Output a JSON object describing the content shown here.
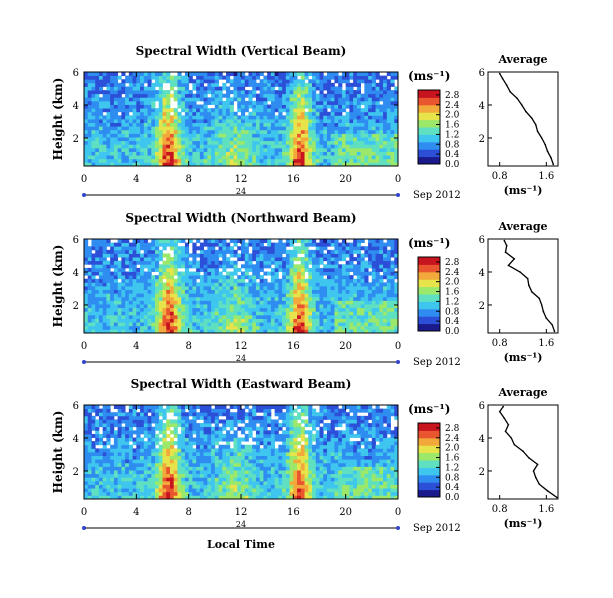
{
  "figure": {
    "xlabel": "Local Time",
    "date_label": "Sep 2012",
    "day_label": "24",
    "colorbar_unit": "(ms⁻¹)",
    "profile_title": "Average",
    "profile_unit": "(ms⁻¹)",
    "colormap": [
      "#1a1a8c",
      "#2c4fd8",
      "#2f8cf0",
      "#3fc6ee",
      "#5fe0c0",
      "#9be86a",
      "#e6e44a",
      "#f2a83a",
      "#e8552e",
      "#c8141e"
    ]
  },
  "chart_data": [
    {
      "type": "heatmap",
      "title": "Spectral Width (Vertical Beam)",
      "ylabel": "Height (km)",
      "x_ticks": [
        "0",
        "4",
        "8",
        "12",
        "16",
        "20",
        "0"
      ],
      "y_ticks": [
        "6",
        "4",
        "2"
      ],
      "xlim": [
        0,
        24
      ],
      "ylim": [
        0.3,
        6
      ],
      "colorbar_ticks": [
        "0.0",
        "0.4",
        "0.8",
        "1.2",
        "1.6",
        "2.0",
        "2.4",
        "2.8"
      ],
      "colorbar_range": [
        0,
        3.0
      ],
      "profile": {
        "title": "Average",
        "x_ticks": [
          "0.8",
          "1.6"
        ],
        "y_ticks": [
          "6",
          "4",
          "2"
        ],
        "xlim": [
          0.6,
          1.8
        ],
        "ylim": [
          0.3,
          6
        ],
        "height": [
          0.4,
          0.8,
          1.2,
          1.6,
          2.0,
          2.4,
          2.8,
          3.2,
          3.6,
          4.0,
          4.4,
          4.8,
          5.2,
          5.6,
          5.9
        ],
        "width": [
          1.72,
          1.68,
          1.62,
          1.58,
          1.52,
          1.45,
          1.42,
          1.35,
          1.25,
          1.18,
          1.1,
          0.98,
          0.92,
          0.85,
          0.8
        ]
      }
    },
    {
      "type": "heatmap",
      "title": "Spectral Width (Northward Beam)",
      "ylabel": "Height (km)",
      "x_ticks": [
        "0",
        "4",
        "8",
        "12",
        "16",
        "20",
        "0"
      ],
      "y_ticks": [
        "6",
        "4",
        "2"
      ],
      "xlim": [
        0,
        24
      ],
      "ylim": [
        0.3,
        6
      ],
      "colorbar_ticks": [
        "0.0",
        "0.4",
        "0.8",
        "1.2",
        "1.6",
        "2.0",
        "2.4",
        "2.8"
      ],
      "colorbar_range": [
        0,
        3.0
      ],
      "profile": {
        "title": "Average",
        "x_ticks": [
          "0.8",
          "1.6"
        ],
        "y_ticks": [
          "6",
          "4",
          "2"
        ],
        "xlim": [
          0.6,
          1.8
        ],
        "ylim": [
          0.3,
          6
        ],
        "height": [
          0.4,
          0.8,
          1.2,
          1.6,
          2.0,
          2.4,
          2.8,
          3.2,
          3.6,
          4.0,
          4.4,
          4.8,
          5.2,
          5.6,
          5.9
        ],
        "width": [
          1.74,
          1.7,
          1.6,
          1.55,
          1.52,
          1.48,
          1.35,
          1.3,
          1.28,
          1.15,
          0.95,
          1.05,
          0.9,
          0.92,
          0.88
        ]
      }
    },
    {
      "type": "heatmap",
      "title": "Spectral Width (Eastward Beam)",
      "ylabel": "Height (km)",
      "x_ticks": [
        "0",
        "4",
        "8",
        "12",
        "16",
        "20",
        "0"
      ],
      "y_ticks": [
        "6",
        "4",
        "2"
      ],
      "xlim": [
        0,
        24
      ],
      "ylim": [
        0.3,
        6
      ],
      "colorbar_ticks": [
        "0.0",
        "0.4",
        "0.8",
        "1.2",
        "1.6",
        "2.0",
        "2.4",
        "2.8"
      ],
      "colorbar_range": [
        0,
        3.0
      ],
      "profile": {
        "title": "Average",
        "x_ticks": [
          "0.8",
          "1.6"
        ],
        "y_ticks": [
          "6",
          "4",
          "2"
        ],
        "xlim": [
          0.6,
          1.8
        ],
        "ylim": [
          0.3,
          6
        ],
        "height": [
          0.4,
          0.8,
          1.2,
          1.6,
          2.0,
          2.4,
          2.8,
          3.2,
          3.6,
          4.0,
          4.4,
          4.8,
          5.2,
          5.6,
          5.9
        ],
        "width": [
          1.78,
          1.62,
          1.48,
          1.42,
          1.38,
          1.45,
          1.3,
          1.2,
          1.05,
          1.0,
          0.9,
          0.95,
          0.88,
          0.8,
          0.86
        ]
      }
    }
  ]
}
